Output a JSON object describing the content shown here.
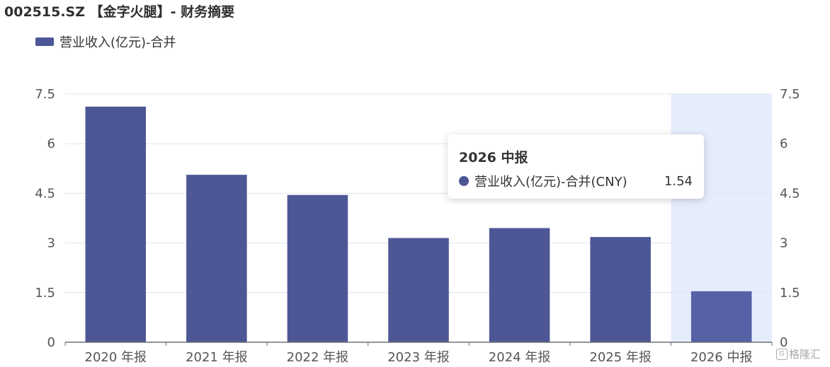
{
  "header": {
    "title": "002515.SZ 【金字火腿】- 财务摘要"
  },
  "legend": {
    "label": "营业收入(亿元)-合并",
    "icon": "legend-swatch"
  },
  "tooltip": {
    "title": "2026 中报",
    "series_label": "营业收入(亿元)-合并(CNY)",
    "value": "1.54"
  },
  "watermark": {
    "text": "格隆汇",
    "icon": "g-logo-icon"
  },
  "colors": {
    "bar": "#4d5795",
    "bar_highlight": "#5661a6",
    "highlight_band": "#e5ecfb",
    "grid": "#dfe4f0",
    "axis": "#6e7079"
  },
  "chart_data": {
    "type": "bar",
    "categories": [
      "2020 年报",
      "2021 年报",
      "2022 年报",
      "2023 年报",
      "2024 年报",
      "2025 年报",
      "2026 中报"
    ],
    "series": [
      {
        "name": "营业收入(亿元)-合并",
        "values": [
          7.12,
          5.06,
          4.45,
          3.15,
          3.45,
          3.18,
          1.54
        ]
      }
    ],
    "y_ticks_left": [
      "0",
      "1.5",
      "3",
      "4.5",
      "6",
      "7.5"
    ],
    "y_ticks_right": [
      "0",
      "1.5",
      "3",
      "4.5",
      "6",
      "7.5"
    ],
    "ylim": [
      0,
      7.5
    ],
    "highlighted_category": "2026 中报",
    "grid": true,
    "legend_position": "top-left"
  }
}
